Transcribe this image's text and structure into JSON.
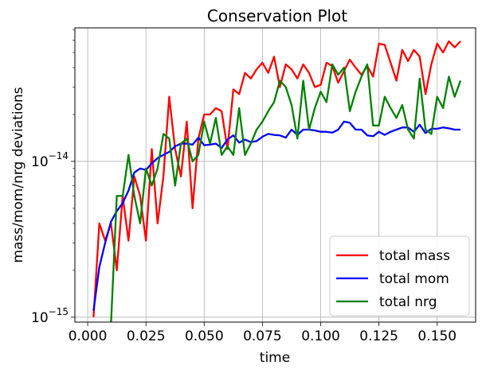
{
  "chart_data": {
    "type": "line",
    "title": "Conservation Plot",
    "xlabel": "time",
    "ylabel": "mass/mom/nrg deviations",
    "xlim": [
      -0.0055,
      0.1665
    ],
    "ylim": [
      9.3e-16,
      7.2e-14
    ],
    "yscale": "log",
    "x_ticks": [
      0.0,
      0.025,
      0.05,
      0.075,
      0.1,
      0.125,
      0.15
    ],
    "x_tick_labels": [
      "0.000",
      "0.025",
      "0.050",
      "0.075",
      "0.100",
      "0.125",
      "0.150"
    ],
    "y_ticks": [
      1e-15,
      1e-14
    ],
    "y_tick_labels": [
      {
        "base": "10",
        "exp": "−15"
      },
      {
        "base": "10",
        "exp": "−14"
      }
    ],
    "grid": true,
    "legend_position": "lower-right",
    "series": [
      {
        "name": "total mass",
        "color": "#ff0000",
        "x": [
          0.0025,
          0.005,
          0.0075,
          0.01,
          0.0125,
          0.015,
          0.0175,
          0.02,
          0.0225,
          0.025,
          0.0275,
          0.03,
          0.0325,
          0.035,
          0.0375,
          0.04,
          0.0425,
          0.045,
          0.0475,
          0.05,
          0.0525,
          0.055,
          0.0575,
          0.06,
          0.0625,
          0.065,
          0.0675,
          0.07,
          0.0725,
          0.075,
          0.0775,
          0.08,
          0.0825,
          0.085,
          0.0875,
          0.09,
          0.0925,
          0.095,
          0.0975,
          0.1,
          0.1025,
          0.105,
          0.1075,
          0.11,
          0.1125,
          0.115,
          0.1175,
          0.12,
          0.1225,
          0.125,
          0.1275,
          0.13,
          0.1325,
          0.135,
          0.1375,
          0.14,
          0.1425,
          0.145,
          0.1475,
          0.15,
          0.1525,
          0.155,
          0.1575,
          0.16
        ],
        "y": [
          1e-15,
          4e-15,
          3.1e-15,
          4e-15,
          2e-15,
          6e-15,
          3.1e-15,
          8e-15,
          6e-15,
          3.1e-15,
          1.2e-14,
          4e-15,
          8e-15,
          2.6e-14,
          1.2e-14,
          8e-15,
          1.8e-14,
          5e-15,
          1.4e-14,
          2e-14,
          2e-14,
          2.2e-14,
          2.1e-14,
          1.2e-14,
          2.9e-14,
          2.7e-14,
          3.7e-14,
          3.4e-14,
          3.9e-14,
          4.3e-14,
          3.7e-14,
          4.7e-14,
          3e-14,
          4.2e-14,
          3.9e-14,
          3.4e-14,
          4.2e-14,
          3.7e-14,
          3e-14,
          3.1e-14,
          4.3e-14,
          4.1e-14,
          3.2e-14,
          3.8e-14,
          4.5e-14,
          4e-14,
          3.6e-14,
          4.1e-14,
          3.5e-14,
          5.7e-14,
          5.6e-14,
          4.3e-14,
          3.3e-14,
          5.2e-14,
          4.4e-14,
          5.2e-14,
          4.7e-14,
          2.7e-14,
          4.2e-14,
          5.7e-14,
          5e-14,
          5.9e-14,
          5.4e-14,
          5.9e-14
        ]
      },
      {
        "name": "total mom",
        "color": "#0000ff",
        "x": [
          0.0025,
          0.005,
          0.0075,
          0.01,
          0.0125,
          0.015,
          0.0175,
          0.02,
          0.0225,
          0.025,
          0.0275,
          0.03,
          0.0325,
          0.035,
          0.0375,
          0.04,
          0.0425,
          0.045,
          0.0475,
          0.05,
          0.0525,
          0.055,
          0.0575,
          0.06,
          0.0625,
          0.065,
          0.0675,
          0.07,
          0.0725,
          0.075,
          0.0775,
          0.08,
          0.0825,
          0.085,
          0.0875,
          0.09,
          0.0925,
          0.095,
          0.0975,
          0.1,
          0.1025,
          0.105,
          0.1075,
          0.11,
          0.1125,
          0.115,
          0.1175,
          0.12,
          0.1225,
          0.125,
          0.1275,
          0.13,
          0.1325,
          0.135,
          0.1375,
          0.14,
          0.1425,
          0.145,
          0.1475,
          0.15,
          0.1525,
          0.155,
          0.1575,
          0.16
        ],
        "y": [
          1.1e-15,
          2.1e-15,
          3e-15,
          4.1e-15,
          4.8e-15,
          5.4e-15,
          6.5e-15,
          8.5e-15,
          9e-15,
          8.8e-15,
          9.7e-15,
          1.05e-14,
          1.1e-14,
          1.15e-14,
          1.25e-14,
          1.3e-14,
          1.3e-14,
          1.28e-14,
          1.42e-14,
          1.27e-14,
          1.28e-14,
          1.3e-14,
          1.22e-14,
          1.38e-14,
          1.47e-14,
          1.32e-14,
          1.38e-14,
          1.33e-14,
          1.35e-14,
          1.44e-14,
          1.5e-14,
          1.48e-14,
          1.47e-14,
          1.42e-14,
          1.6e-14,
          1.48e-14,
          1.6e-14,
          1.6e-14,
          1.58e-14,
          1.55e-14,
          1.55e-14,
          1.53e-14,
          1.6e-14,
          1.8e-14,
          1.77e-14,
          1.6e-14,
          1.6e-14,
          1.47e-14,
          1.45e-14,
          1.55e-14,
          1.48e-14,
          1.55e-14,
          1.6e-14,
          1.65e-14,
          1.65e-14,
          1.55e-14,
          1.72e-14,
          1.52e-14,
          1.62e-14,
          1.62e-14,
          1.65e-14,
          1.63e-14,
          1.6e-14,
          1.6e-14
        ]
      },
      {
        "name": "total nrg",
        "color": "#008000",
        "x": [
          0.01,
          0.0125,
          0.015,
          0.0175,
          0.02,
          0.0225,
          0.025,
          0.0275,
          0.03,
          0.0325,
          0.035,
          0.0375,
          0.04,
          0.0425,
          0.045,
          0.0475,
          0.05,
          0.0525,
          0.055,
          0.0575,
          0.06,
          0.0625,
          0.065,
          0.0675,
          0.07,
          0.0725,
          0.075,
          0.0775,
          0.08,
          0.0825,
          0.085,
          0.0875,
          0.09,
          0.0925,
          0.095,
          0.0975,
          0.1,
          0.1025,
          0.105,
          0.1075,
          0.11,
          0.1125,
          0.115,
          0.1175,
          0.12,
          0.1225,
          0.125,
          0.1275,
          0.13,
          0.1325,
          0.135,
          0.1375,
          0.14,
          0.1425,
          0.145,
          0.1475,
          0.15,
          0.1525,
          0.155,
          0.1575,
          0.16
        ],
        "y": [
          9e-16,
          6e-15,
          6e-15,
          1.1e-14,
          6e-15,
          4e-15,
          9e-15,
          7e-15,
          9e-15,
          1.5e-14,
          1.4e-14,
          7e-15,
          1.3e-14,
          1.4e-14,
          1e-14,
          1.1e-14,
          1.8e-14,
          1.3e-14,
          1.9e-14,
          1.1e-14,
          1.25e-14,
          1.1e-14,
          2.2e-14,
          1.1e-14,
          1.3e-14,
          1.6e-14,
          1.8e-14,
          2.1e-14,
          2.4e-14,
          3.3e-14,
          3e-14,
          2.3e-14,
          1.4e-14,
          3.3e-14,
          1.6e-14,
          2.2e-14,
          2.8e-14,
          2.4e-14,
          4.2e-14,
          3.6e-14,
          4e-14,
          2.1e-14,
          2.8e-14,
          3.5e-14,
          4.2e-14,
          1.7e-14,
          1.7e-14,
          2.6e-14,
          2.2e-14,
          1.9e-14,
          2.3e-14,
          1.6e-14,
          1.4e-14,
          3.4e-14,
          1.6e-14,
          1.5e-14,
          2.6e-14,
          2.2e-14,
          3.5e-14,
          2.6e-14,
          3.3e-14
        ]
      }
    ]
  }
}
